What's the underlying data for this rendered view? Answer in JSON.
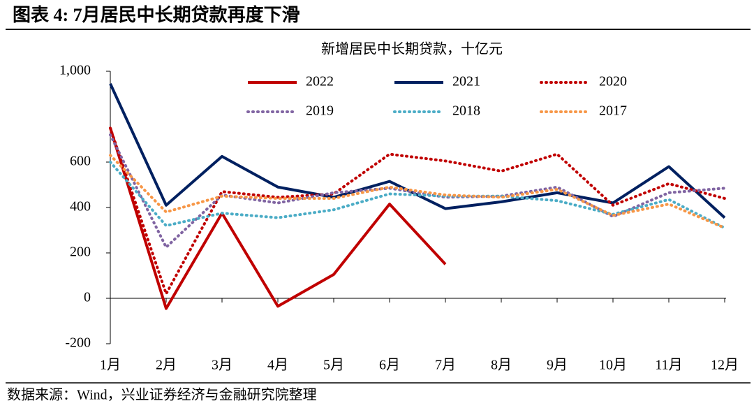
{
  "title": "图表 4: 7月居民中长期贷款再度下滑",
  "source": "数据来源：Wind，兴业证券经济与金融研究院整理",
  "chart_data": {
    "type": "line",
    "title": "新增居民中长期贷款，十亿元",
    "categories": [
      "1月",
      "2月",
      "3月",
      "4月",
      "5月",
      "6月",
      "7月",
      "8月",
      "9月",
      "10月",
      "11月",
      "12月"
    ],
    "series": [
      {
        "name": "2022",
        "color": "#c00000",
        "style": "solid",
        "values": [
          750,
          -45,
          375,
          -35,
          105,
          415,
          150,
          null,
          null,
          null,
          null,
          null
        ]
      },
      {
        "name": "2021",
        "color": "#002060",
        "style": "solid",
        "values": [
          945,
          410,
          625,
          490,
          445,
          515,
          395,
          425,
          465,
          420,
          580,
          355
        ]
      },
      {
        "name": "2020",
        "color": "#c00000",
        "style": "dotted",
        "values": [
          750,
          20,
          470,
          445,
          460,
          635,
          605,
          560,
          635,
          410,
          505,
          440
        ]
      },
      {
        "name": "2019",
        "color": "#8064a2",
        "style": "dotted",
        "values": [
          720,
          225,
          455,
          420,
          465,
          485,
          445,
          450,
          490,
          360,
          465,
          485
        ]
      },
      {
        "name": "2018",
        "color": "#4bacc6",
        "style": "dotted",
        "values": [
          600,
          320,
          375,
          355,
          390,
          460,
          450,
          450,
          430,
          370,
          435,
          310
        ]
      },
      {
        "name": "2017",
        "color": "#f79646",
        "style": "dotted",
        "values": [
          630,
          380,
          450,
          440,
          440,
          490,
          455,
          445,
          480,
          365,
          415,
          310
        ]
      }
    ],
    "ylim": [
      -200,
      1000
    ],
    "yticks": [
      -200,
      0,
      200,
      400,
      600,
      {
        "value": 1000,
        "label": "1,000"
      }
    ],
    "grid": false
  }
}
